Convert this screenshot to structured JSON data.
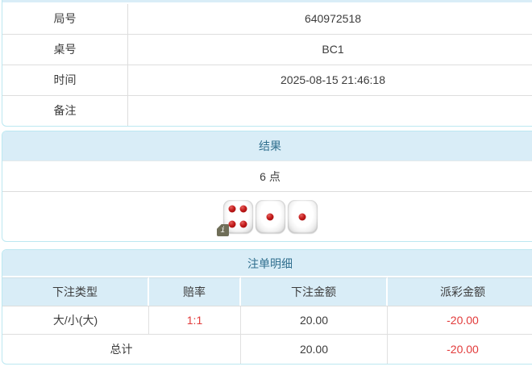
{
  "colors": {
    "panel_header_bg": "#d9edf7",
    "panel_border": "#bce8f1",
    "panel_title_text": "#31708f",
    "cell_text": "#3c3c3c",
    "negative_text": "#e23b3b",
    "row_border": "#dddddd",
    "info_badge_bg": "#6f6e58"
  },
  "game_info": {
    "rows": [
      {
        "label": "局号",
        "value": "640972518"
      },
      {
        "label": "桌号",
        "value": "BC1"
      },
      {
        "label": "时间",
        "value": "2025-08-15 21:46:18"
      },
      {
        "label": "备注",
        "value": ""
      }
    ]
  },
  "result": {
    "title": "结果",
    "points": "6 点",
    "dice": [
      4,
      1,
      1
    ],
    "info_icon": "i"
  },
  "bets": {
    "title": "注单明细",
    "columns": [
      "下注类型",
      "赔率",
      "下注金额",
      "派彩金额"
    ],
    "rows": [
      {
        "bet_type": "大/小(大)",
        "odds": "1:1",
        "bet_amount": "20.00",
        "payout_amount": "-20.00"
      }
    ],
    "total": {
      "label": "总计",
      "bet_amount": "20.00",
      "payout_amount": "-20.00"
    }
  }
}
